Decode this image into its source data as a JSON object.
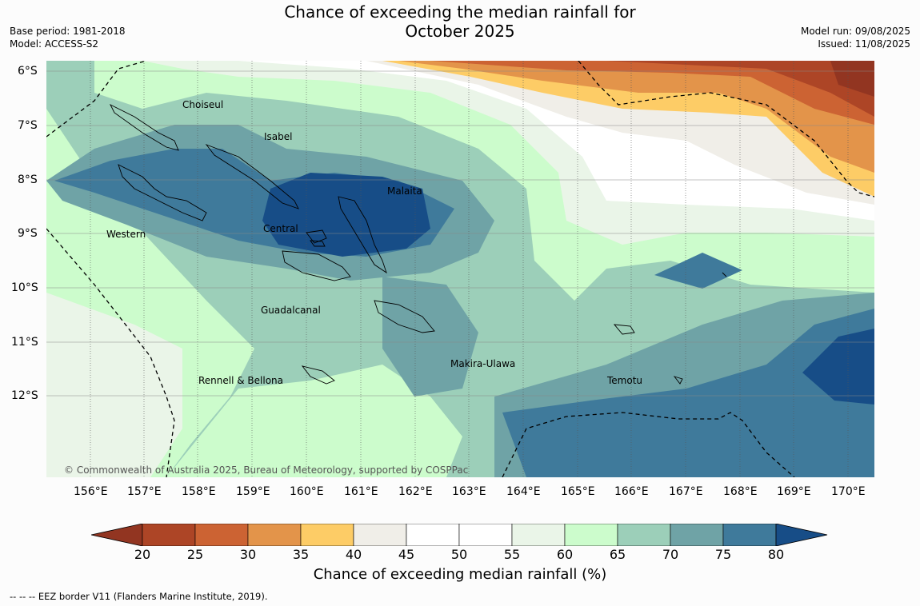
{
  "title_line1": "Chance of exceeding the median rainfall for",
  "title_line2": "October 2025",
  "base_period": "Base period: 1981-2018",
  "model": "Model: ACCESS-S2",
  "model_run": "Model run: 09/08/2025",
  "issued": "Issued: 11/08/2025",
  "copyright": "© Commonwealth of Australia 2025, Bureau of Meteorology, supported by COSPPac",
  "lat_labels": [
    "6°S",
    "7°S",
    "8°S",
    "9°S",
    "10°S",
    "11°S",
    "12°S"
  ],
  "lon_labels": [
    "156°E",
    "157°E",
    "158°E",
    "159°E",
    "160°E",
    "161°E",
    "162°E",
    "163°E",
    "164°E",
    "165°E",
    "166°E",
    "167°E",
    "168°E",
    "169°E",
    "170°E"
  ],
  "regions": [
    "Choiseul",
    "Isabel",
    "Malaita",
    "Western",
    "Central",
    "Guadalcanal",
    "Makira-Ulawa",
    "Rennell & Bellona",
    "Temotu"
  ],
  "colorbar": {
    "ticks": [
      "20",
      "25",
      "30",
      "35",
      "40",
      "45",
      "50",
      "55",
      "60",
      "65",
      "70",
      "75",
      "80"
    ],
    "colors": [
      "#ad4526",
      "#cc6333",
      "#e3944a",
      "#fdcc66",
      "#f0eee8",
      "#ffffff",
      "#ffffff",
      "#eaf5e8",
      "#ccfccc",
      "#9ccfb9",
      "#6fa3a6",
      "#3f7a9b"
    ],
    "under_color": "#923521",
    "over_color": "#174d87",
    "label": "Chance of exceeding median rainfall (%)"
  },
  "legend_eez": "--  --  -- EEZ border V11 (Flanders Marine Institute, 2019)."
}
